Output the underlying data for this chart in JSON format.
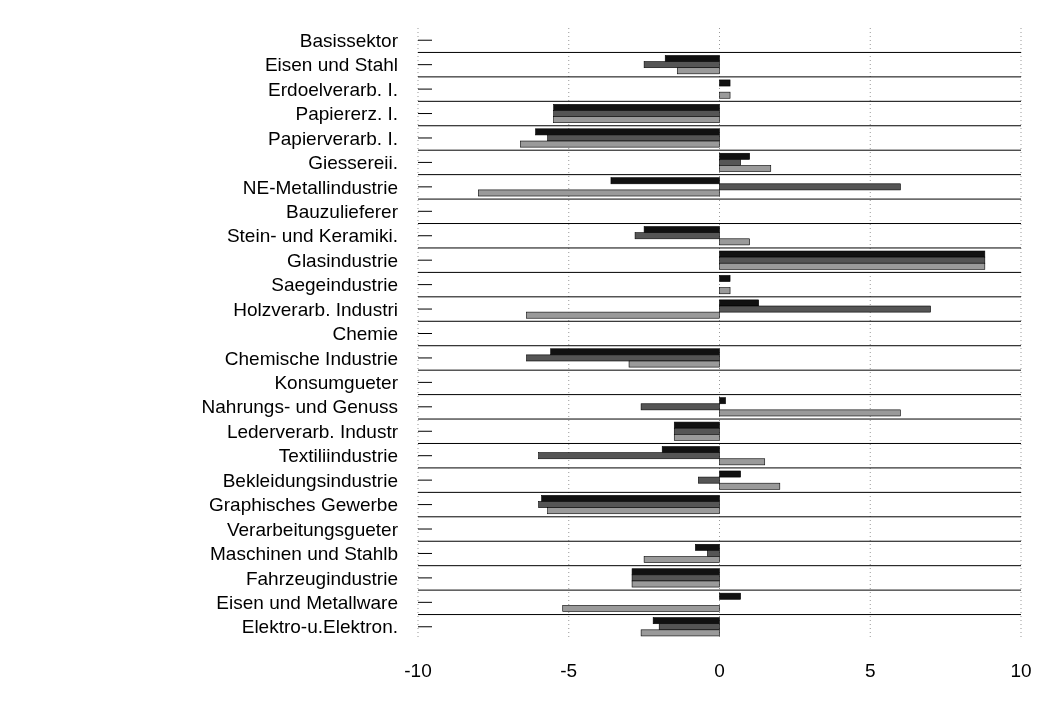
{
  "chart_data": {
    "type": "bar",
    "orientation": "horizontal",
    "categories": [
      "Basissektor",
      "Eisen und Stahl",
      "Erdoelverarb. I.",
      "Papiererz. I.",
      "Papierverarb. I.",
      "Giessereii.",
      "NE-Metallindustrie",
      "Bauzulieferer",
      "Stein- und Keramiki.",
      "Glasindustrie",
      "Saegeindustrie",
      "Holzverarb. Industri",
      "Chemie",
      "Chemische Industrie",
      "Konsumgueter",
      "Nahrungs- und Genuss",
      "Lederverarb. Industr",
      "Textiliindustrie",
      "Bekleidungsindustrie",
      "Graphisches Gewerbe",
      "Verarbeitungsgueter",
      "Maschinen und Stahlb",
      "Fahrzeugindustrie",
      "Eisen und Metallware",
      "Elektro-u.Elektron."
    ],
    "series": [
      {
        "color": "#111111",
        "values": [
          null,
          -1.8,
          0.35,
          -5.5,
          -6.1,
          1.0,
          -3.6,
          null,
          -2.5,
          8.8,
          0.35,
          1.3,
          null,
          -5.6,
          null,
          0.2,
          -1.5,
          -1.9,
          0.7,
          -5.9,
          null,
          -0.8,
          -2.9,
          0.7,
          -2.2
        ]
      },
      {
        "color": "#555555",
        "values": [
          null,
          -2.5,
          null,
          -5.5,
          -5.7,
          0.7,
          6.0,
          null,
          -2.8,
          8.8,
          null,
          7.0,
          null,
          -6.4,
          null,
          -2.6,
          -1.5,
          -6.0,
          -0.7,
          -6.0,
          null,
          -0.4,
          -2.9,
          null,
          -2.0
        ]
      },
      {
        "color": "#9a9a9a",
        "values": [
          null,
          -1.4,
          0.35,
          -5.5,
          -6.6,
          1.7,
          -8.0,
          null,
          1.0,
          8.8,
          0.35,
          -6.4,
          null,
          -3.0,
          null,
          6.0,
          -1.5,
          1.5,
          2.0,
          -5.7,
          null,
          -2.5,
          -2.9,
          -5.2,
          -2.6
        ]
      }
    ],
    "xlim": [
      -10,
      10
    ],
    "xticks": [
      -10,
      -5,
      0,
      5,
      10
    ],
    "grid": "x"
  }
}
